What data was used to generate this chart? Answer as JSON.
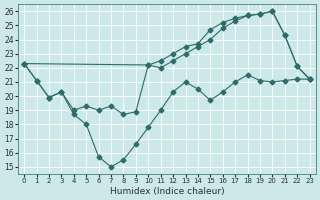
{
  "xlabel": "Humidex (Indice chaleur)",
  "ylabel": "",
  "xlim": [
    -0.5,
    23.5
  ],
  "ylim": [
    14.5,
    26.5
  ],
  "yticks": [
    15,
    16,
    17,
    18,
    19,
    20,
    21,
    22,
    23,
    24,
    25,
    26
  ],
  "xticks": [
    0,
    1,
    2,
    3,
    4,
    5,
    6,
    7,
    8,
    9,
    10,
    11,
    12,
    13,
    14,
    15,
    16,
    17,
    18,
    19,
    20,
    21,
    22,
    23
  ],
  "bg_color": "#cce8e8",
  "line_color": "#2e6b6b",
  "grid_color": "#ffffff",
  "line1_x": [
    0,
    1,
    2,
    3,
    4,
    5,
    6,
    7,
    8,
    9,
    10,
    11,
    12,
    13,
    14,
    15,
    16,
    17,
    18,
    19,
    20,
    21,
    22,
    23
  ],
  "line1_y": [
    22.3,
    21.1,
    19.9,
    20.3,
    18.7,
    18.0,
    15.7,
    15.0,
    15.5,
    16.6,
    17.8,
    19.0,
    20.3,
    21.0,
    20.5,
    19.7,
    20.3,
    21.0,
    21.5,
    21.1,
    21.0,
    21.1,
    21.2,
    21.2
  ],
  "line2_x": [
    0,
    1,
    2,
    3,
    4,
    5,
    6,
    7,
    8,
    9,
    10,
    11,
    12,
    13,
    14,
    15,
    16,
    17,
    18,
    19,
    20,
    21,
    22,
    23
  ],
  "line2_y": [
    22.3,
    21.1,
    19.9,
    20.3,
    19.0,
    19.3,
    19.0,
    19.3,
    18.7,
    18.9,
    22.2,
    22.0,
    22.5,
    23.0,
    23.5,
    24.0,
    24.8,
    25.3,
    25.7,
    25.8,
    26.0,
    24.3,
    22.1,
    21.2
  ],
  "line3_x": [
    0,
    10,
    11,
    12,
    13,
    14,
    15,
    16,
    17,
    18,
    19,
    20,
    21,
    22,
    23
  ],
  "line3_y": [
    22.3,
    22.2,
    22.5,
    23.0,
    23.5,
    23.7,
    24.7,
    25.2,
    25.5,
    25.7,
    25.8,
    26.0,
    24.3,
    22.1,
    21.2
  ]
}
